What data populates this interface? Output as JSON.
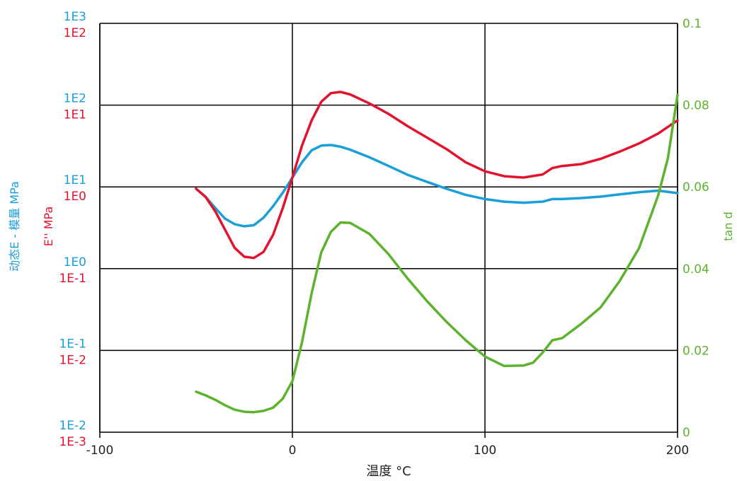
{
  "chart_data": {
    "type": "line",
    "xlabel": "温度 °C",
    "x_ticks": [
      "-100",
      "0",
      "100",
      "200"
    ],
    "xlim": [
      -100,
      200
    ],
    "ylabel_left_outer": "动态E - 模量 MPa",
    "ylabel_left_inner": "E'' MPa",
    "ylabel_right": "tan d",
    "left_ticks_outer": [
      "1E3",
      "1E2",
      "1E1",
      "1E0",
      "1E-1",
      "1E-2"
    ],
    "left_ticks_inner": [
      "1E2",
      "1E1",
      "1E0",
      "1E-1",
      "1E-2",
      "1E-3"
    ],
    "right_ticks": [
      "0.1",
      "0.08",
      "0.06",
      "0.04",
      "0.02",
      "0"
    ],
    "ylim_left_outer": [
      0.01,
      1000
    ],
    "ylim_left_inner": [
      0.001,
      100
    ],
    "ylim_right": [
      0,
      0.1
    ],
    "y_scale_left": "log",
    "grid": true,
    "series": [
      {
        "axis": "left_outer",
        "color": "#1a9fd8",
        "points": [
          [
            -50,
            9.5
          ],
          [
            -45,
            7.5
          ],
          [
            -40,
            5.5
          ],
          [
            -35,
            4.1
          ],
          [
            -30,
            3.5
          ],
          [
            -25,
            3.3
          ],
          [
            -20,
            3.4
          ],
          [
            -15,
            4.2
          ],
          [
            -10,
            5.8
          ],
          [
            -5,
            8.5
          ],
          [
            0,
            13
          ],
          [
            5,
            20
          ],
          [
            10,
            28
          ],
          [
            15,
            32
          ],
          [
            20,
            32.5
          ],
          [
            25,
            31
          ],
          [
            30,
            28.5
          ],
          [
            40,
            23
          ],
          [
            50,
            18
          ],
          [
            60,
            14
          ],
          [
            70,
            11.5
          ],
          [
            80,
            9.5
          ],
          [
            90,
            8
          ],
          [
            100,
            7.1
          ],
          [
            110,
            6.6
          ],
          [
            120,
            6.4
          ],
          [
            130,
            6.6
          ],
          [
            135,
            7.1
          ],
          [
            140,
            7.1
          ],
          [
            150,
            7.3
          ],
          [
            160,
            7.6
          ],
          [
            170,
            8.1
          ],
          [
            180,
            8.6
          ],
          [
            190,
            9
          ],
          [
            200,
            8.4
          ]
        ]
      },
      {
        "axis": "left_inner",
        "color": "#e2142d",
        "points": [
          [
            -50,
            0.95
          ],
          [
            -45,
            0.75
          ],
          [
            -40,
            0.5
          ],
          [
            -35,
            0.3
          ],
          [
            -30,
            0.18
          ],
          [
            -25,
            0.14
          ],
          [
            -20,
            0.135
          ],
          [
            -15,
            0.16
          ],
          [
            -10,
            0.26
          ],
          [
            -5,
            0.55
          ],
          [
            0,
            1.3
          ],
          [
            5,
            3.2
          ],
          [
            10,
            6.5
          ],
          [
            15,
            11
          ],
          [
            20,
            14
          ],
          [
            25,
            14.5
          ],
          [
            30,
            13.5
          ],
          [
            40,
            10.5
          ],
          [
            50,
            7.8
          ],
          [
            60,
            5.5
          ],
          [
            70,
            4
          ],
          [
            80,
            2.9
          ],
          [
            90,
            2
          ],
          [
            100,
            1.55
          ],
          [
            110,
            1.35
          ],
          [
            120,
            1.3
          ],
          [
            130,
            1.42
          ],
          [
            135,
            1.7
          ],
          [
            140,
            1.8
          ],
          [
            150,
            1.9
          ],
          [
            160,
            2.2
          ],
          [
            170,
            2.7
          ],
          [
            180,
            3.4
          ],
          [
            190,
            4.5
          ],
          [
            200,
            6.5
          ]
        ]
      },
      {
        "axis": "right",
        "color": "#5db32e",
        "points": [
          [
            -50,
            0.0099
          ],
          [
            -45,
            0.009
          ],
          [
            -40,
            0.0079
          ],
          [
            -35,
            0.0066
          ],
          [
            -30,
            0.0055
          ],
          [
            -25,
            0.005
          ],
          [
            -20,
            0.0049
          ],
          [
            -15,
            0.0052
          ],
          [
            -10,
            0.006
          ],
          [
            -5,
            0.0082
          ],
          [
            0,
            0.0125
          ],
          [
            5,
            0.022
          ],
          [
            10,
            0.034
          ],
          [
            15,
            0.044
          ],
          [
            20,
            0.049
          ],
          [
            25,
            0.0513
          ],
          [
            30,
            0.0512
          ],
          [
            40,
            0.0485
          ],
          [
            50,
            0.0435
          ],
          [
            60,
            0.0375
          ],
          [
            70,
            0.032
          ],
          [
            80,
            0.027
          ],
          [
            90,
            0.0225
          ],
          [
            100,
            0.0185
          ],
          [
            110,
            0.0162
          ],
          [
            120,
            0.0163
          ],
          [
            125,
            0.017
          ],
          [
            130,
            0.0195
          ],
          [
            135,
            0.0225
          ],
          [
            140,
            0.023
          ],
          [
            150,
            0.0265
          ],
          [
            160,
            0.0305
          ],
          [
            170,
            0.037
          ],
          [
            180,
            0.045
          ],
          [
            190,
            0.058
          ],
          [
            195,
            0.067
          ],
          [
            200,
            0.0825
          ]
        ]
      }
    ]
  }
}
